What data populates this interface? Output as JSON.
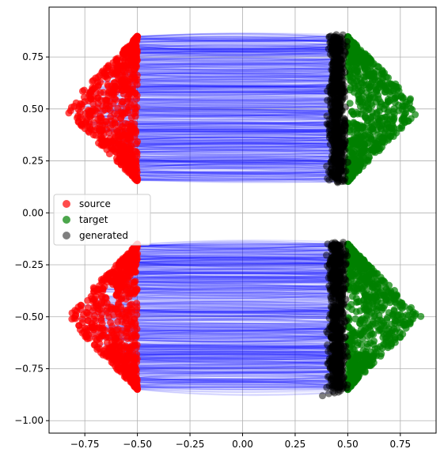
{
  "chart_data": {
    "type": "scatter",
    "title": "",
    "xlabel": "",
    "ylabel": "",
    "xlim": [
      -0.92,
      0.92
    ],
    "ylim": [
      -1.06,
      0.99
    ],
    "grid": true,
    "x_ticks": [
      -0.75,
      -0.5,
      -0.25,
      0.0,
      0.25,
      0.5,
      0.75
    ],
    "x_tick_labels": [
      "−0.75",
      "−0.50",
      "−0.25",
      "0.00",
      "0.25",
      "0.50",
      "0.75"
    ],
    "y_ticks": [
      0.75,
      0.5,
      0.25,
      0.0,
      -0.25,
      -0.5,
      -0.75,
      -1.0
    ],
    "y_tick_labels": [
      "0.75",
      "0.50",
      "0.25",
      "0.00",
      "−0.25",
      "−0.50",
      "−0.75",
      "−1.00"
    ],
    "legend_position": "center-left",
    "series": [
      {
        "name": "source",
        "color": "#ff0000",
        "alpha": 0.7,
        "description_regions": [
          {
            "shape": "half-diamond-left",
            "center": [
              -0.5,
              0.5
            ],
            "half_width": 0.35,
            "half_height": 0.35
          },
          {
            "shape": "half-diamond-left",
            "center": [
              -0.5,
              -0.5
            ],
            "half_width": 0.35,
            "half_height": 0.35
          }
        ]
      },
      {
        "name": "target",
        "color": "#008000",
        "alpha": 0.7,
        "description_regions": [
          {
            "shape": "half-diamond-right",
            "center": [
              0.5,
              0.5
            ],
            "half_width": 0.35,
            "half_height": 0.35
          },
          {
            "shape": "half-diamond-right",
            "center": [
              0.5,
              -0.5
            ],
            "half_width": 0.35,
            "half_height": 0.35
          }
        ]
      },
      {
        "name": "generated",
        "color": "#000000",
        "alpha": 0.5,
        "description_regions": [
          {
            "shape": "band",
            "center": [
              0.45,
              0.5
            ],
            "half_width": 0.06,
            "half_height": 0.34
          },
          {
            "shape": "band",
            "center": [
              0.45,
              -0.5
            ],
            "half_width": 0.06,
            "half_height": 0.34
          }
        ],
        "outliers": [
          [
            0.38,
            -0.88
          ],
          [
            0.41,
            -0.87
          ],
          [
            0.43,
            -0.86
          ],
          [
            0.4,
            -0.84
          ],
          [
            0.44,
            -0.83
          ]
        ]
      }
    ],
    "trajectories": {
      "color": "#0000ff",
      "alpha": 0.12
    }
  }
}
